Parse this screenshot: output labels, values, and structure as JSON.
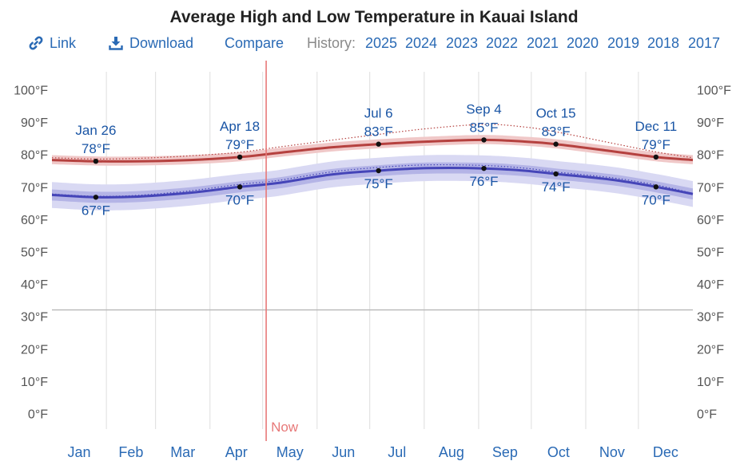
{
  "title": "Average High and Low Temperature in Kauai Island",
  "toolbar": {
    "link_label": "Link",
    "download_label": "Download",
    "compare_label": "Compare",
    "history_label": "History:",
    "years": [
      "2025",
      "2024",
      "2023",
      "2022",
      "2021",
      "2020",
      "2019",
      "2018",
      "2017"
    ]
  },
  "colors": {
    "high": "#b5413f",
    "high_band": "#f0c8c8",
    "low": "#4545b8",
    "low_band_inner": "#b4b4e6",
    "low_band_outer": "#d9d9f3",
    "annotation": "#1a55a5",
    "now": "#e77878",
    "month_label": "#2a6ab5"
  },
  "chart_data": {
    "type": "line",
    "title": "Average High and Low Temperature in Kauai Island",
    "y_unit": "°F",
    "ylim": [
      -5,
      105
    ],
    "y_ticks": [
      0,
      10,
      20,
      30,
      40,
      50,
      60,
      70,
      80,
      90,
      100
    ],
    "y_tick_labels": [
      "0°F",
      "10°F",
      "20°F",
      "30°F",
      "40°F",
      "50°F",
      "60°F",
      "70°F",
      "80°F",
      "90°F",
      "100°F"
    ],
    "x_unit": "day_of_year",
    "xlim": [
      1,
      366
    ],
    "months": [
      "Jan",
      "Feb",
      "Mar",
      "Apr",
      "May",
      "Jun",
      "Jul",
      "Aug",
      "Sep",
      "Oct",
      "Nov",
      "Dec"
    ],
    "reference_line_y": 32,
    "grid": true,
    "now_marker": {
      "label": "Now",
      "day": 123
    },
    "series": [
      {
        "key": "high",
        "x": [
          1,
          26,
          50,
          80,
          108,
          130,
          160,
          187,
          215,
          247,
          270,
          288,
          320,
          345,
          366
        ],
        "y": [
          78.3,
          77.9,
          77.9,
          78.3,
          79.2,
          80.5,
          82.2,
          83.2,
          84.0,
          84.5,
          84.0,
          83.2,
          81.0,
          79.2,
          78.3
        ],
        "band_lower": [
          77.0,
          76.6,
          76.6,
          77.0,
          77.9,
          79.2,
          80.9,
          81.9,
          82.7,
          83.2,
          82.7,
          81.9,
          79.7,
          77.9,
          77.0
        ],
        "band_upper": [
          79.8,
          79.4,
          79.4,
          79.8,
          80.7,
          82.0,
          83.7,
          84.7,
          85.5,
          86.0,
          85.5,
          84.7,
          82.5,
          80.7,
          79.8
        ],
        "dotted": [
          79.0,
          78.6,
          78.8,
          79.6,
          80.7,
          82.3,
          84.4,
          86.2,
          88.0,
          89.3,
          88.5,
          87.0,
          83.5,
          80.8,
          79.0
        ]
      },
      {
        "key": "low",
        "x": [
          1,
          26,
          50,
          80,
          108,
          130,
          160,
          187,
          215,
          247,
          270,
          288,
          320,
          345,
          366
        ],
        "y": [
          67.5,
          66.8,
          67.0,
          68.2,
          70.0,
          71.2,
          73.8,
          75.0,
          75.8,
          75.7,
          75.0,
          74.0,
          72.2,
          70.0,
          67.8
        ],
        "band_inner_lower": [
          65.8,
          65.1,
          65.3,
          66.5,
          68.3,
          69.5,
          72.1,
          73.3,
          74.1,
          74.0,
          73.3,
          72.3,
          70.5,
          68.3,
          66.1
        ],
        "band_inner_upper": [
          69.2,
          68.5,
          68.7,
          69.9,
          71.7,
          72.9,
          75.5,
          76.7,
          77.5,
          77.4,
          76.7,
          75.7,
          73.9,
          71.7,
          69.5
        ],
        "band_outer_lower": [
          63.5,
          62.8,
          63.0,
          64.2,
          66.0,
          67.2,
          69.8,
          71.0,
          71.8,
          71.7,
          71.0,
          70.0,
          68.2,
          66.0,
          63.8
        ],
        "band_outer_upper": [
          71.5,
          70.8,
          71.0,
          72.2,
          74.0,
          75.2,
          77.8,
          79.0,
          79.8,
          79.7,
          79.0,
          78.0,
          76.2,
          74.0,
          71.8
        ],
        "dotted": [
          67.8,
          67.1,
          67.4,
          68.8,
          70.8,
          72.0,
          74.6,
          76.0,
          76.8,
          76.6,
          75.8,
          74.6,
          72.8,
          70.6,
          68.0
        ]
      }
    ],
    "annotations": [
      {
        "date": "Jan 26",
        "value": "78°F",
        "day": 26,
        "temp": 77.9,
        "pos": "above"
      },
      {
        "date": "Apr 18",
        "value": "79°F",
        "day": 108,
        "temp": 79.2,
        "pos": "above"
      },
      {
        "date": "Jul 6",
        "value": "83°F",
        "day": 187,
        "temp": 83.2,
        "pos": "above"
      },
      {
        "date": "Sep 4",
        "value": "85°F",
        "day": 247,
        "temp": 84.5,
        "pos": "above"
      },
      {
        "date": "Oct 15",
        "value": "83°F",
        "day": 288,
        "temp": 83.2,
        "pos": "above"
      },
      {
        "date": "Dec 11",
        "value": "79°F",
        "day": 345,
        "temp": 79.2,
        "pos": "above"
      },
      {
        "date": "",
        "value": "67°F",
        "day": 26,
        "temp": 66.8,
        "pos": "below"
      },
      {
        "date": "",
        "value": "70°F",
        "day": 108,
        "temp": 70.0,
        "pos": "below"
      },
      {
        "date": "",
        "value": "75°F",
        "day": 187,
        "temp": 75.0,
        "pos": "below"
      },
      {
        "date": "",
        "value": "76°F",
        "day": 247,
        "temp": 75.7,
        "pos": "below"
      },
      {
        "date": "",
        "value": "74°F",
        "day": 288,
        "temp": 74.0,
        "pos": "below"
      },
      {
        "date": "",
        "value": "70°F",
        "day": 345,
        "temp": 70.0,
        "pos": "below"
      }
    ]
  }
}
